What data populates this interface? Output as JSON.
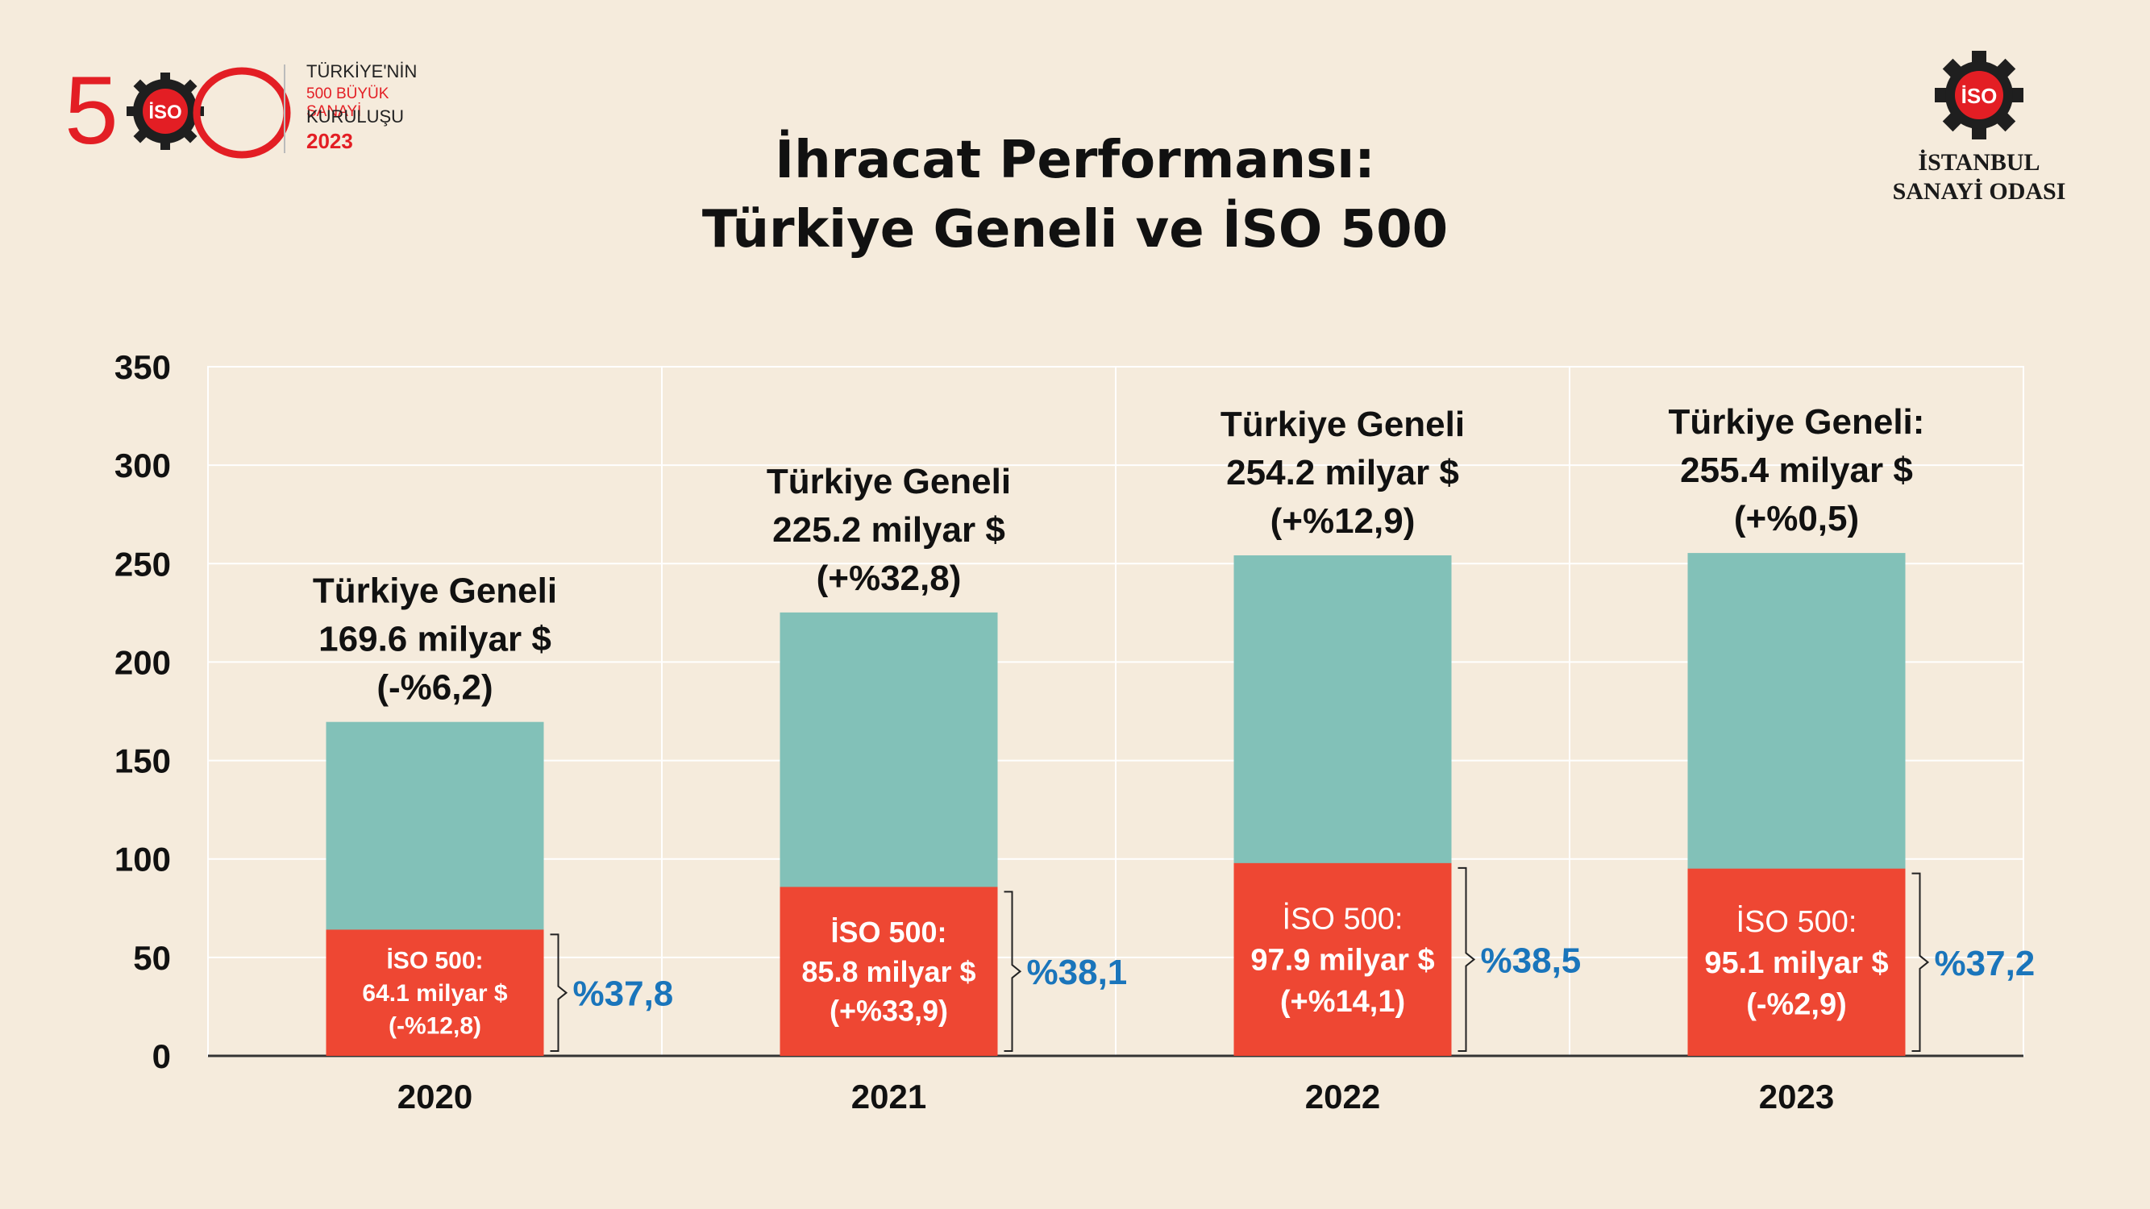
{
  "header": {
    "logo_left": {
      "number": "500",
      "line1": "TÜRKİYE'NİN",
      "line2": "500 BÜYÜK SANAYİ",
      "line3": "KURULUŞU",
      "year": "2023"
    },
    "logo_right": {
      "badge": "İSO",
      "org_line1": "İSTANBUL",
      "org_line2": "SANAYİ ODASI"
    },
    "title_line1": "İhracat Performansı:",
    "title_line2": "Türkiye Geneli ve İSO 500"
  },
  "colors": {
    "background": "#F5EBDC",
    "turkiye_bar": "#82C1B8",
    "iso_bar": "#EE4733",
    "share_text": "#1A75BB",
    "brand_red": "#E31E24"
  },
  "chart_data": {
    "type": "bar",
    "stacked": true,
    "categories": [
      "2020",
      "2021",
      "2022",
      "2023"
    ],
    "ylim": [
      0,
      350
    ],
    "yticks": [
      "0",
      "50",
      "100",
      "150",
      "200",
      "250",
      "300",
      "350"
    ],
    "grid": true,
    "series": [
      {
        "values": [
          169.6,
          225.2,
          254.2,
          255.4
        ]
      },
      {
        "values": [
          64.1,
          85.8,
          97.9,
          95.1
        ]
      }
    ],
    "top_labels": [
      [
        "Türkiye Geneli",
        "169.6 milyar $",
        "(-%6,2)"
      ],
      [
        "Türkiye Geneli",
        "225.2 milyar $",
        "(+%32,8)"
      ],
      [
        "Türkiye Geneli",
        "254.2 milyar $",
        "(+%12,9)"
      ],
      [
        "Türkiye Geneli:",
        "255.4 milyar $",
        "(+%0,5)"
      ]
    ],
    "inner_labels": [
      [
        "İSO 500:",
        "64.1 milyar $",
        "(-%12,8)"
      ],
      [
        "İSO 500:",
        "85.8 milyar $",
        "(+%33,9)"
      ],
      [
        "İSO 500:",
        "97.9 milyar $",
        "(+%14,1)"
      ],
      [
        "İSO 500:",
        "95.1 milyar $",
        "(-%2,9)"
      ]
    ],
    "share_labels": [
      "%37,8",
      "%38,1",
      "%38,5",
      "%37,2"
    ]
  }
}
